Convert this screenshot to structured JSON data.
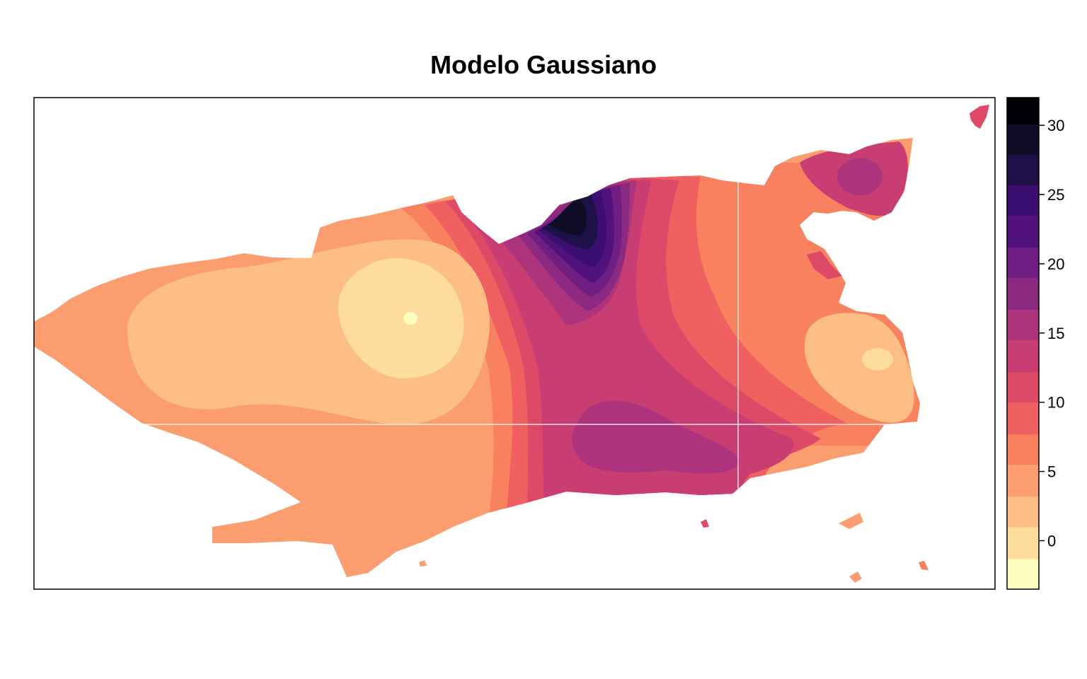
{
  "chart_data": {
    "type": "heatmap",
    "title": "Modelo Gaussiano",
    "xlabel": "",
    "ylabel": "",
    "colorbar": {
      "range": [
        -3.5,
        32
      ],
      "ticks": [
        0,
        5,
        10,
        15,
        20,
        25,
        30
      ],
      "tick_labels": [
        "0",
        "5",
        "10",
        "15",
        "20",
        "25",
        "30"
      ],
      "bins": [
        {
          "from": -3.5,
          "to": -1.3,
          "color": "#FCFDBF"
        },
        {
          "from": -1.3,
          "to": 1.0,
          "color": "#FDDC9E"
        },
        {
          "from": 1.0,
          "to": 3.2,
          "color": "#FDBE85"
        },
        {
          "from": 3.2,
          "to": 5.5,
          "color": "#FC9D6F"
        },
        {
          "from": 5.5,
          "to": 7.7,
          "color": "#F8815F"
        },
        {
          "from": 7.7,
          "to": 10.0,
          "color": "#F06060"
        },
        {
          "from": 10.0,
          "to": 12.2,
          "color": "#DE4968"
        },
        {
          "from": 12.2,
          "to": 14.5,
          "color": "#C83E73"
        },
        {
          "from": 14.5,
          "to": 16.7,
          "color": "#AD347C"
        },
        {
          "from": 16.7,
          "to": 19.0,
          "color": "#8C2981"
        },
        {
          "from": 19.0,
          "to": 21.2,
          "color": "#6E1F81"
        },
        {
          "from": 21.2,
          "to": 23.5,
          "color": "#51127C"
        },
        {
          "from": 23.5,
          "to": 25.7,
          "color": "#3B0F70"
        },
        {
          "from": 25.7,
          "to": 27.9,
          "color": "#1D1147"
        },
        {
          "from": 27.9,
          "to": 30.1,
          "color": "#0F0C28"
        },
        {
          "from": 30.1,
          "to": 32.0,
          "color": "#000004"
        }
      ]
    },
    "field_peaks": [
      {
        "name": "northern maximum",
        "value": 31
      },
      {
        "name": "south-central maximum",
        "value": 17
      },
      {
        "name": "western minimum",
        "value": -2
      },
      {
        "name": "eastern minimum",
        "value": 1
      }
    ],
    "grid": false,
    "legend_position": "right"
  }
}
